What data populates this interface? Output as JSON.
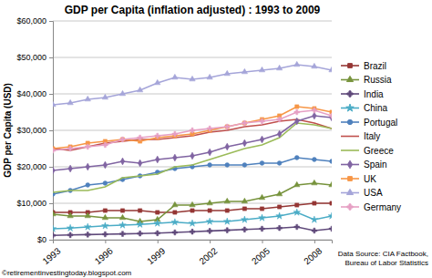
{
  "chart_data": {
    "type": "line",
    "title": "GDP per Capita (inflation adjusted) : 1993 to 2009",
    "y_label": "GDP per Capita (USD)",
    "annotations": [
      "Data Source: CIA Factbook,",
      "Bureau of Labor Statistics",
      "©retirementinvestingtoday.blogspot.com"
    ],
    "x": [
      1993,
      1994,
      1995,
      1996,
      1997,
      1998,
      1999,
      2000,
      2001,
      2002,
      2003,
      2004,
      2005,
      2006,
      2007,
      2008,
      2009
    ],
    "xlim": [
      1993,
      2009
    ],
    "xticks": [
      1993,
      1996,
      1999,
      2002,
      2005,
      2008
    ],
    "ylim": [
      0,
      60000
    ],
    "yticks": [
      {
        "value": 0,
        "label": "$0"
      },
      {
        "value": 10000,
        "label": "$10,000"
      },
      {
        "value": 20000,
        "label": "$20,000"
      },
      {
        "value": 30000,
        "label": "$30,000"
      },
      {
        "value": 40000,
        "label": "$40,000"
      },
      {
        "value": 50000,
        "label": "$50,000"
      },
      {
        "value": 60000,
        "label": "$60,000"
      }
    ],
    "grid": true,
    "legend": "right",
    "series": [
      {
        "name": "Brazil",
        "color": "#953735",
        "marker": "square",
        "values": [
          7500,
          7500,
          7500,
          8000,
          8000,
          8000,
          7500,
          7500,
          8000,
          8000,
          8000,
          8500,
          8500,
          9000,
          9500,
          10000,
          10000
        ]
      },
      {
        "name": "Russia",
        "color": "#77933c",
        "marker": "triangle",
        "values": [
          7000,
          6500,
          6500,
          6000,
          6000,
          5000,
          5500,
          9500,
          9500,
          10000,
          10500,
          10500,
          11500,
          12500,
          15000,
          15500,
          15000
        ]
      },
      {
        "name": "India",
        "color": "#604a7b",
        "marker": "cross",
        "values": [
          1200,
          1300,
          1400,
          1500,
          1600,
          1700,
          1800,
          2000,
          2200,
          2400,
          2600,
          2800,
          3000,
          3200,
          3500,
          2500,
          3000
        ]
      },
      {
        "name": "China",
        "color": "#4bacc6",
        "marker": "star",
        "values": [
          3000,
          3200,
          3500,
          3800,
          4000,
          4200,
          4500,
          4800,
          4500,
          5000,
          5000,
          5500,
          6000,
          6500,
          7500,
          5500,
          6500
        ]
      },
      {
        "name": "Portugal",
        "color": "#4f81bd",
        "marker": "circle",
        "values": [
          12500,
          13500,
          15000,
          15500,
          16500,
          17500,
          18500,
          19500,
          20000,
          20500,
          20500,
          20500,
          21000,
          21000,
          22500,
          22000,
          21500
        ]
      },
      {
        "name": "Italy",
        "color": "#c0504d",
        "marker": "none",
        "values": [
          25000,
          24500,
          25500,
          26500,
          27000,
          27500,
          27500,
          28000,
          28500,
          29500,
          30000,
          31000,
          31500,
          32500,
          33000,
          32000,
          30500
        ]
      },
      {
        "name": "Greece",
        "color": "#9bbb59",
        "marker": "none",
        "values": [
          13000,
          13500,
          13500,
          14500,
          17000,
          17500,
          18000,
          20000,
          20500,
          22000,
          23500,
          25000,
          26000,
          28000,
          32000,
          31500,
          30500
        ]
      },
      {
        "name": "Spain",
        "color": "#8064a2",
        "marker": "diamond",
        "values": [
          19000,
          19500,
          20000,
          20500,
          21500,
          21000,
          22000,
          22500,
          23000,
          24000,
          25500,
          26500,
          27500,
          29000,
          32500,
          34000,
          33500
        ]
      },
      {
        "name": "UK",
        "color": "#f79646",
        "marker": "square",
        "values": [
          25000,
          25500,
          26500,
          27000,
          27500,
          27000,
          28000,
          28500,
          29000,
          30000,
          31000,
          32000,
          33000,
          34000,
          36500,
          36000,
          35000
        ]
      },
      {
        "name": "USA",
        "color": "#a5a5d9",
        "marker": "triangle",
        "values": [
          37000,
          37500,
          38500,
          39000,
          40000,
          41000,
          43000,
          44500,
          44000,
          44500,
          45500,
          46000,
          46500,
          47000,
          48000,
          47500,
          46500
        ]
      },
      {
        "name": "Germany",
        "color": "#e6a0c4",
        "marker": "cross",
        "values": [
          24500,
          25000,
          25500,
          26000,
          27500,
          28000,
          28500,
          29000,
          30000,
          30500,
          31000,
          32000,
          32500,
          33000,
          35000,
          35500,
          34000
        ]
      }
    ]
  }
}
